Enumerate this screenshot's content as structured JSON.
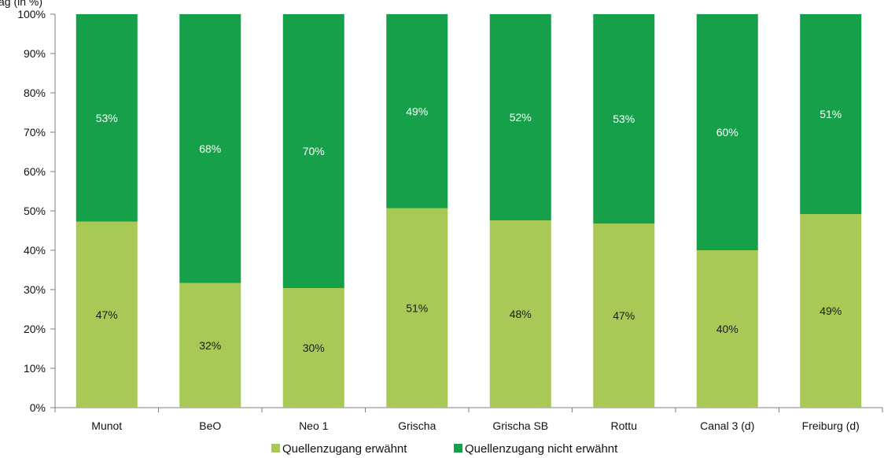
{
  "chart_data": {
    "type": "bar",
    "stacked": true,
    "title_fragment": "ag (in %)",
    "categories": [
      "Munot",
      "BeO",
      "Neo 1",
      "Grischa",
      "Grischa SB",
      "Rottu",
      "Canal 3 (d)",
      "Freiburg (d)"
    ],
    "series": [
      {
        "name": "Quellenzugang erwähnt",
        "color": "#a8c956",
        "label_color": "#1a1a1a",
        "values": [
          47,
          32,
          30,
          51,
          48,
          47,
          40,
          49
        ],
        "labels": [
          "47%",
          "32%",
          "30%",
          "51%",
          "48%",
          "47%",
          "40%",
          "49%"
        ]
      },
      {
        "name": "Quellenzugang nicht erwähnt",
        "color": "#17a04a",
        "label_color": "#ffffff",
        "values": [
          53,
          68,
          70,
          49,
          52,
          53,
          60,
          51
        ],
        "labels": [
          "53%",
          "68%",
          "70%",
          "49%",
          "52%",
          "53%",
          "60%",
          "51%"
        ]
      }
    ],
    "bar_shares": [
      [
        47.3,
        52.7
      ],
      [
        31.7,
        68.3
      ],
      [
        30.4,
        69.6
      ],
      [
        50.7,
        49.3
      ],
      [
        47.6,
        52.4
      ],
      [
        46.8,
        53.2
      ],
      [
        40.0,
        60.0
      ],
      [
        49.2,
        50.8
      ]
    ],
    "ylim": [
      0,
      100
    ],
    "yticks": [
      "0%",
      "10%",
      "20%",
      "30%",
      "40%",
      "50%",
      "60%",
      "70%",
      "80%",
      "90%",
      "100%"
    ],
    "grid": false,
    "legend_position": "bottom"
  }
}
